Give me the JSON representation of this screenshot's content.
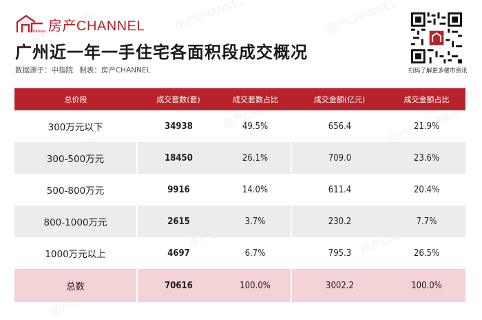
{
  "brand": {
    "name": "房产CHANNEL",
    "accent_color": "#b8232b",
    "logo_icon": "house-outline-icon"
  },
  "title": "广州近一年一手住宅各面积段成交概况",
  "source": {
    "data_source": "数据源于：中指院",
    "made_by": "制表：房产CHANNEL"
  },
  "qr": {
    "caption": "扫码了解更多楼市资讯",
    "icon": "qr-code-icon"
  },
  "watermark_text": "房产CHANNEL",
  "table": {
    "headers": [
      "总价段",
      "成交套数(套)",
      "成交套数占比",
      "成交金额(亿元)",
      "成交金额占比"
    ],
    "rows": [
      {
        "band": "300万元以下",
        "units": "34938",
        "units_share": "49.5%",
        "amount": "656.4",
        "amount_share": "21.9%"
      },
      {
        "band": "300-500万元",
        "units": "18450",
        "units_share": "26.1%",
        "amount": "709.0",
        "amount_share": "23.6%"
      },
      {
        "band": "500-800万元",
        "units": "9916",
        "units_share": "14.0%",
        "amount": "611.4",
        "amount_share": "20.4%"
      },
      {
        "band": "800-1000万元",
        "units": "2615",
        "units_share": "3.7%",
        "amount": "230.2",
        "amount_share": "7.7%"
      },
      {
        "band": "1000万元以上",
        "units": "4697",
        "units_share": "6.7%",
        "amount": "795.3",
        "amount_share": "26.5%"
      }
    ],
    "total": {
      "band": "总数",
      "units": "70616",
      "units_share": "100.0%",
      "amount": "3002.2",
      "amount_share": "100.0%"
    }
  }
}
